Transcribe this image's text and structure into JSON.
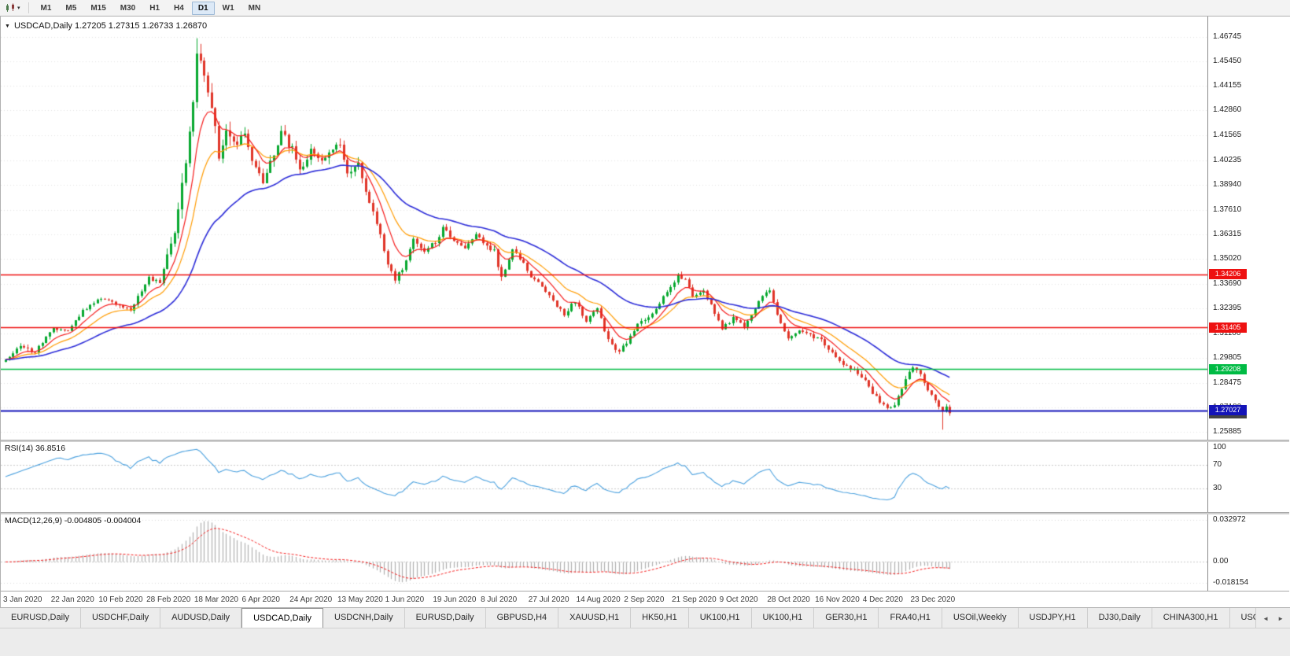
{
  "icons": {
    "caret_down": "▾",
    "collapse": "▼",
    "scroll_left": "◄",
    "scroll_right": "►"
  },
  "toolbar": {
    "timeframes": [
      {
        "label": "M1",
        "active": false
      },
      {
        "label": "M5",
        "active": false
      },
      {
        "label": "M15",
        "active": false
      },
      {
        "label": "M30",
        "active": false
      },
      {
        "label": "H1",
        "active": false
      },
      {
        "label": "H4",
        "active": false
      },
      {
        "label": "D1",
        "active": true
      },
      {
        "label": "W1",
        "active": false
      },
      {
        "label": "MN",
        "active": false
      }
    ]
  },
  "chart": {
    "title_text": "USDCAD,Daily 1.27205 1.27315 1.26733 1.26870",
    "symbol": "USDCAD",
    "timeframe": "Daily",
    "y_axis_labels": [
      "1.46745",
      "1.45450",
      "1.44155",
      "1.42860",
      "1.41565",
      "1.40235",
      "1.38940",
      "1.37610",
      "1.36315",
      "1.35020",
      "1.33690",
      "1.32395",
      "1.31100",
      "1.29805",
      "1.28475",
      "1.27180",
      "1.25885"
    ],
    "levels": [
      {
        "price": 1.34206,
        "label": "1.34206",
        "color": "#ee1111",
        "strong": false
      },
      {
        "price": 1.31405,
        "label": "1.31405",
        "color": "#ee1111",
        "strong": false
      },
      {
        "price": 1.29208,
        "label": "1.29208",
        "color": "#00bb44",
        "strong": false
      },
      {
        "price": 1.27027,
        "label": "1.27027",
        "color": "#1414b8",
        "strong": true
      }
    ],
    "current_price_label": {
      "label": "1.26870",
      "color": "#444444"
    },
    "colors": {
      "up": "#07a82f",
      "down": "#e03428",
      "ma_fast": "#f51b1b",
      "ma_mid": "#ff9b00",
      "ma_slow": "#2c2cd8",
      "grid": "#e2e2e2",
      "rsi_line": "#4aa0de",
      "macd_hist": "#b0b0b0",
      "macd_signal": "#f51b1b"
    }
  },
  "indicators": {
    "rsi": {
      "label": "RSI(14) 36.8516",
      "axis_labels": [
        "100",
        "70",
        "30"
      ],
      "upper": 70,
      "lower": 30
    },
    "macd": {
      "label": "MACD(12,26,9) -0.004805 -0.004004",
      "axis_labels": [
        "0.032972",
        "0.00",
        "-0.018154"
      ]
    }
  },
  "x_axis_dates": [
    "3 Jan 2020",
    "22 Jan 2020",
    "10 Feb 2020",
    "28 Feb 2020",
    "18 Mar 2020",
    "6 Apr 2020",
    "24 Apr 2020",
    "13 May 2020",
    "1 Jun 2020",
    "19 Jun 2020",
    "8 Jul 2020",
    "27 Jul 2020",
    "14 Aug 2020",
    "2 Sep 2020",
    "21 Sep 2020",
    "9 Oct 2020",
    "28 Oct 2020",
    "16 Nov 2020",
    "4 Dec 2020",
    "23 Dec 2020"
  ],
  "tabs": {
    "items": [
      {
        "label": "EURUSD,Daily",
        "active": false
      },
      {
        "label": "USDCHF,Daily",
        "active": false
      },
      {
        "label": "AUDUSD,Daily",
        "active": false
      },
      {
        "label": "USDCAD,Daily",
        "active": true
      },
      {
        "label": "USDCNH,Daily",
        "active": false
      },
      {
        "label": "EURUSD,Daily",
        "active": false
      },
      {
        "label": "GBPUSD,H4",
        "active": false
      },
      {
        "label": "XAUUSD,H1",
        "active": false
      },
      {
        "label": "HK50,H1",
        "active": false
      },
      {
        "label": "UK100,H1",
        "active": false
      },
      {
        "label": "UK100,H1",
        "active": false
      },
      {
        "label": "GER30,H1",
        "active": false
      },
      {
        "label": "FRA40,H1",
        "active": false
      },
      {
        "label": "USOil,Weekly",
        "active": false
      },
      {
        "label": "USDJPY,H1",
        "active": false
      },
      {
        "label": "DJ30,Daily",
        "active": false
      },
      {
        "label": "CHINA300,H1",
        "active": false
      },
      {
        "label": "USOil,",
        "active": false
      }
    ]
  },
  "chart_data": {
    "type": "candlestick",
    "symbol": "USDCAD",
    "timeframe": "D1",
    "title": "USDCAD,Daily",
    "bar_count": 258,
    "bars_per_date_tick": 13,
    "date_ticks": [
      "3 Jan 2020",
      "22 Jan 2020",
      "10 Feb 2020",
      "28 Feb 2020",
      "18 Mar 2020",
      "6 Apr 2020",
      "24 Apr 2020",
      "13 May 2020",
      "1 Jun 2020",
      "19 Jun 2020",
      "8 Jul 2020",
      "27 Jul 2020",
      "14 Aug 2020",
      "2 Sep 2020",
      "21 Sep 2020",
      "9 Oct 2020",
      "28 Oct 2020",
      "16 Nov 2020",
      "4 Dec 2020",
      "23 Dec 2020"
    ],
    "price_axis": {
      "top": 1.46745,
      "bottom": 1.25885
    },
    "last_bar": {
      "open": 1.27205,
      "high": 1.27315,
      "low": 1.26733,
      "close": 1.2687
    },
    "extremes": {
      "high": 1.4668,
      "high_index": 52,
      "low": 1.26,
      "low_index": 255
    },
    "horizontal_levels": [
      1.34206,
      1.31405,
      1.29208,
      1.27027
    ],
    "moving_averages": [
      {
        "period": 8,
        "color": "red"
      },
      {
        "period": 16,
        "color": "orange"
      },
      {
        "period": 40,
        "color": "blue"
      }
    ],
    "indicators": {
      "rsi_period": 14,
      "rsi_last": 36.8516,
      "macd_params": [
        12,
        26,
        9
      ],
      "macd_last": -0.004805,
      "macd_signal_last": -0.004004,
      "macd_axis_max": 0.032972,
      "macd_axis_min": -0.018154
    },
    "close_anchors": [
      [
        0,
        1.297
      ],
      [
        4,
        1.3045
      ],
      [
        8,
        1.301
      ],
      [
        13,
        1.314
      ],
      [
        17,
        1.3115
      ],
      [
        21,
        1.3225
      ],
      [
        26,
        1.33
      ],
      [
        30,
        1.3265
      ],
      [
        34,
        1.323
      ],
      [
        39,
        1.34
      ],
      [
        42,
        1.338
      ],
      [
        45,
        1.356
      ],
      [
        47,
        1.377
      ],
      [
        49,
        1.399
      ],
      [
        51,
        1.435
      ],
      [
        52,
        1.46
      ],
      [
        54,
        1.445
      ],
      [
        56,
        1.431
      ],
      [
        58,
        1.404
      ],
      [
        60,
        1.419
      ],
      [
        63,
        1.412
      ],
      [
        65,
        1.416
      ],
      [
        67,
        1.403
      ],
      [
        70,
        1.39
      ],
      [
        73,
        1.406
      ],
      [
        75,
        1.417
      ],
      [
        78,
        1.408
      ],
      [
        80,
        1.396
      ],
      [
        83,
        1.407
      ],
      [
        86,
        1.401
      ],
      [
        89,
        1.409
      ],
      [
        91,
        1.412
      ],
      [
        93,
        1.395
      ],
      [
        96,
        1.4
      ],
      [
        99,
        1.38
      ],
      [
        102,
        1.362
      ],
      [
        104,
        1.348
      ],
      [
        106,
        1.339
      ],
      [
        108,
        1.345
      ],
      [
        111,
        1.361
      ],
      [
        114,
        1.354
      ],
      [
        117,
        1.359
      ],
      [
        119,
        1.366
      ],
      [
        122,
        1.36
      ],
      [
        125,
        1.356
      ],
      [
        128,
        1.363
      ],
      [
        130,
        1.359
      ],
      [
        133,
        1.354
      ],
      [
        135,
        1.34
      ],
      [
        138,
        1.356
      ],
      [
        141,
        1.348
      ],
      [
        143,
        1.34
      ],
      [
        146,
        1.336
      ],
      [
        149,
        1.328
      ],
      [
        152,
        1.321
      ],
      [
        155,
        1.328
      ],
      [
        158,
        1.317
      ],
      [
        161,
        1.324
      ],
      [
        164,
        1.307
      ],
      [
        167,
        1.301
      ],
      [
        169,
        1.306
      ],
      [
        172,
        1.316
      ],
      [
        175,
        1.319
      ],
      [
        178,
        1.327
      ],
      [
        181,
        1.335
      ],
      [
        183,
        1.342
      ],
      [
        185,
        1.339
      ],
      [
        187,
        1.331
      ],
      [
        190,
        1.333
      ],
      [
        193,
        1.322
      ],
      [
        195,
        1.313
      ],
      [
        198,
        1.319
      ],
      [
        201,
        1.314
      ],
      [
        204,
        1.324
      ],
      [
        206,
        1.331
      ],
      [
        208,
        1.334
      ],
      [
        210,
        1.32
      ],
      [
        213,
        1.309
      ],
      [
        216,
        1.313
      ],
      [
        219,
        1.31
      ],
      [
        222,
        1.307
      ],
      [
        225,
        1.301
      ],
      [
        228,
        1.295
      ],
      [
        231,
        1.291
      ],
      [
        234,
        1.286
      ],
      [
        236,
        1.279
      ],
      [
        238,
        1.275
      ],
      [
        240,
        1.2715
      ],
      [
        242,
        1.2735
      ],
      [
        244,
        1.282
      ],
      [
        246,
        1.2905
      ],
      [
        247,
        1.2935
      ],
      [
        249,
        1.289
      ],
      [
        251,
        1.2815
      ],
      [
        253,
        1.275
      ],
      [
        255,
        1.27
      ],
      [
        256,
        1.2722
      ],
      [
        257,
        1.2687
      ]
    ]
  }
}
